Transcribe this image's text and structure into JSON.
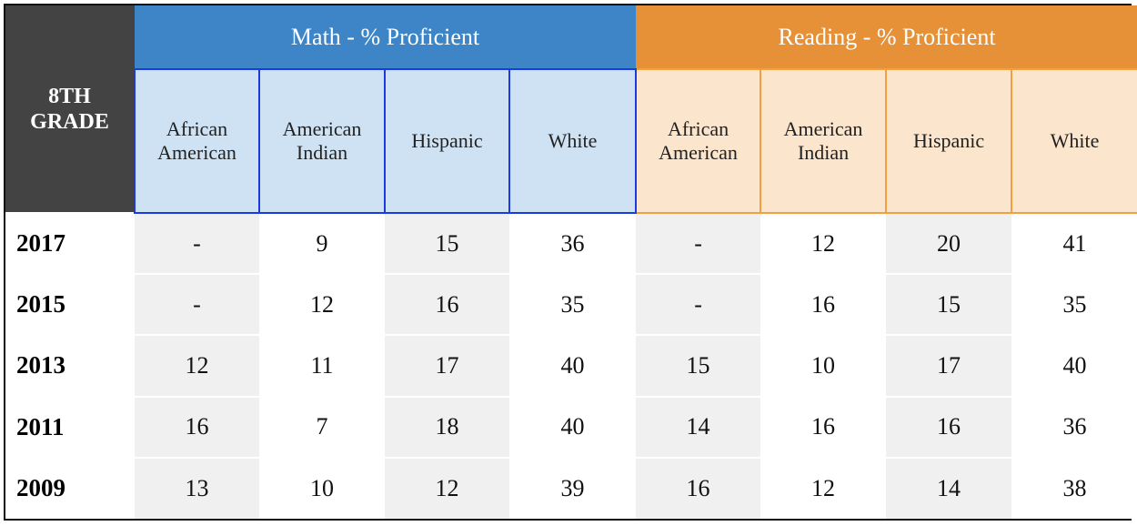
{
  "chart_data": {
    "type": "table",
    "corner_label": [
      "8TH",
      "GRADE"
    ],
    "groups": [
      {
        "label": "Math - % Proficient",
        "color": "#3d85c6",
        "sub_color": "#cfe2f3"
      },
      {
        "label": "Reading - % Proficient",
        "color": "#e69138",
        "sub_color": "#fce5cd"
      }
    ],
    "columns": [
      [
        "African",
        "American"
      ],
      [
        "American",
        "Indian"
      ],
      [
        "Hispanic"
      ],
      [
        "White"
      ],
      [
        "African",
        "American"
      ],
      [
        "American",
        "Indian"
      ],
      [
        "Hispanic"
      ],
      [
        "White"
      ]
    ],
    "rows": [
      {
        "year": "2017",
        "values": [
          "-",
          "9",
          "15",
          "36",
          "-",
          "12",
          "20",
          "41"
        ]
      },
      {
        "year": "2015",
        "values": [
          "-",
          "12",
          "16",
          "35",
          "-",
          "16",
          "15",
          "35"
        ]
      },
      {
        "year": "2013",
        "values": [
          "12",
          "11",
          "17",
          "40",
          "15",
          "10",
          "17",
          "40"
        ]
      },
      {
        "year": "2011",
        "values": [
          "16",
          "7",
          "18",
          "40",
          "14",
          "16",
          "16",
          "36"
        ]
      },
      {
        "year": "2009",
        "values": [
          "13",
          "10",
          "12",
          "39",
          "16",
          "12",
          "14",
          "38"
        ]
      }
    ]
  }
}
